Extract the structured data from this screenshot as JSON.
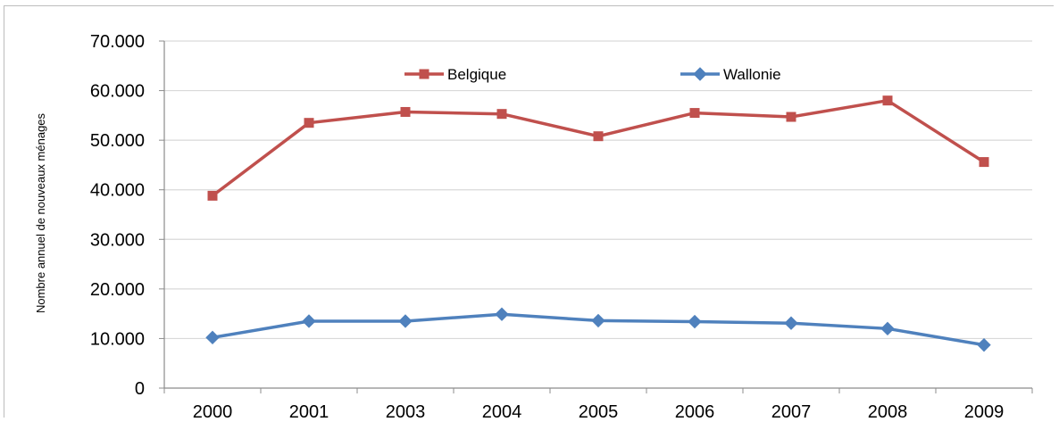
{
  "chart_data": {
    "type": "line",
    "title": "",
    "xlabel": "",
    "ylabel": "Nombre annuel de nouveaux ménages",
    "categories": [
      "2000",
      "2001",
      "2003",
      "2004",
      "2005",
      "2006",
      "2007",
      "2008",
      "2009"
    ],
    "y_ticks": [
      "0",
      "10.000",
      "20.000",
      "30.000",
      "40.000",
      "50.000",
      "60.000",
      "70.000"
    ],
    "ylim": [
      0,
      70000
    ],
    "grid": true,
    "legend_position": "top-center",
    "series": [
      {
        "name": "Belgique",
        "color": "#c0504d",
        "marker": "square",
        "values": [
          38800,
          53500,
          55700,
          55300,
          50800,
          55500,
          54700,
          58000,
          45600
        ]
      },
      {
        "name": "Wallonie",
        "color": "#4f81bd",
        "marker": "diamond",
        "values": [
          10200,
          13500,
          13500,
          14900,
          13600,
          13400,
          13100,
          12000,
          8700
        ]
      }
    ]
  }
}
